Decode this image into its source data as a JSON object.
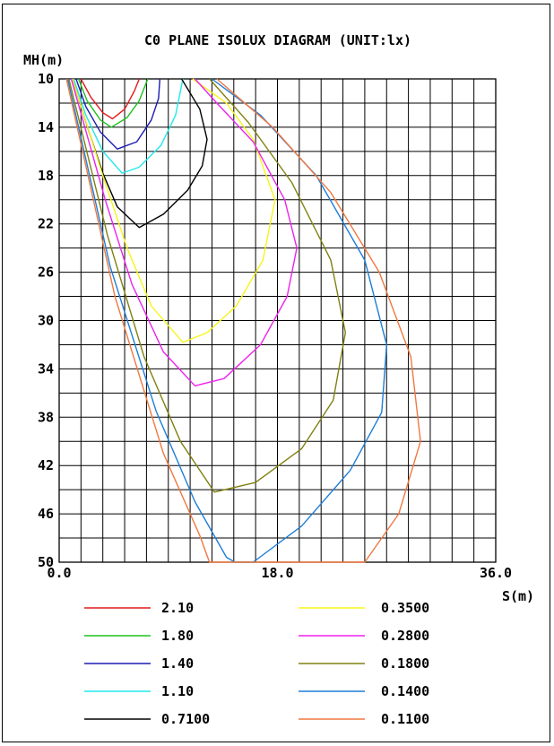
{
  "chart_data": {
    "type": "line",
    "title": "C0 PLANE ISOLUX DIAGRAM (UNIT:lx)",
    "xlabel": "S(m)",
    "ylabel": "MH(m)",
    "xlim": [
      0,
      36
    ],
    "ylim": [
      10,
      50
    ],
    "x_tick_labels": [
      "0.0",
      "18.0",
      "36.0"
    ],
    "y_tick_labels": [
      "10",
      "14",
      "18",
      "22",
      "26",
      "30",
      "34",
      "38",
      "42",
      "46",
      "50"
    ],
    "grid": true,
    "legend": [
      {
        "label": "2.10",
        "color": "#e41a1c"
      },
      {
        "label": "1.80",
        "color": "#1fc21f"
      },
      {
        "label": "1.40",
        "color": "#1c1cb4"
      },
      {
        "label": "1.10",
        "color": "#22e8ec"
      },
      {
        "label": "0.7100",
        "color": "#000000"
      },
      {
        "label": "0.3500",
        "color": "#f5f51c"
      },
      {
        "label": "0.2800",
        "color": "#ee22ee"
      },
      {
        "label": "0.1800",
        "color": "#808012"
      },
      {
        "label": "0.1400",
        "color": "#1e7ed8"
      },
      {
        "label": "0.1100",
        "color": "#f07840"
      }
    ],
    "series": [
      {
        "name": "2.10",
        "color": "#e41a1c",
        "points": [
          [
            1.8,
            10
          ],
          [
            2.6,
            11.5
          ],
          [
            3.6,
            12.8
          ],
          [
            4.4,
            13.3
          ],
          [
            5.4,
            12.5
          ],
          [
            6.2,
            11.0
          ],
          [
            6.6,
            10
          ]
        ]
      },
      {
        "name": "1.80",
        "color": "#1fc21f",
        "points": [
          [
            1.6,
            10
          ],
          [
            2.3,
            11.8
          ],
          [
            3.4,
            13.4
          ],
          [
            4.3,
            14.0
          ],
          [
            5.6,
            13.2
          ],
          [
            6.6,
            11.8
          ],
          [
            7.3,
            10
          ]
        ]
      },
      {
        "name": "1.40",
        "color": "#1c1cb4",
        "points": [
          [
            1.4,
            10
          ],
          [
            2.2,
            12.3
          ],
          [
            3.4,
            14.4
          ],
          [
            4.8,
            15.8
          ],
          [
            6.4,
            15.2
          ],
          [
            7.6,
            13.4
          ],
          [
            8.2,
            11.6
          ],
          [
            8.3,
            10
          ]
        ]
      },
      {
        "name": "1.10",
        "color": "#22e8ec",
        "points": [
          [
            1.2,
            10
          ],
          [
            2.2,
            13.0
          ],
          [
            3.6,
            16.0
          ],
          [
            5.2,
            17.8
          ],
          [
            6.6,
            17.3
          ],
          [
            8.4,
            15.5
          ],
          [
            9.6,
            13.0
          ],
          [
            10.2,
            10
          ]
        ]
      },
      {
        "name": "0.7100",
        "color": "#000000",
        "points": [
          [
            1.1,
            10
          ],
          [
            2.4,
            14.2
          ],
          [
            3.6,
            17.8
          ],
          [
            4.8,
            20.6
          ],
          [
            6.6,
            22.3
          ],
          [
            8.6,
            21.2
          ],
          [
            10.6,
            19.2
          ],
          [
            11.8,
            17.2
          ],
          [
            12.2,
            15.0
          ],
          [
            11.6,
            12.5
          ],
          [
            10.1,
            10
          ]
        ]
      },
      {
        "name": "0.3500",
        "color": "#f5f51c",
        "points": [
          [
            1.1,
            10
          ],
          [
            3.6,
            18.0
          ],
          [
            5.6,
            24.0
          ],
          [
            7.6,
            28.8
          ],
          [
            10.2,
            31.8
          ],
          [
            12.2,
            31.0
          ],
          [
            14.6,
            28.8
          ],
          [
            16.8,
            25.0
          ],
          [
            17.8,
            20.0
          ],
          [
            16.0,
            15.0
          ],
          [
            13.8,
            12.0
          ],
          [
            11.0,
            10
          ]
        ]
      },
      {
        "name": "0.2800",
        "color": "#ee22ee",
        "points": [
          [
            1.0,
            10
          ],
          [
            3.8,
            20.0
          ],
          [
            6.0,
            27.0
          ],
          [
            8.6,
            32.6
          ],
          [
            11.2,
            35.4
          ],
          [
            13.6,
            34.8
          ],
          [
            16.6,
            32.0
          ],
          [
            18.8,
            28.0
          ],
          [
            19.6,
            24.0
          ],
          [
            18.6,
            20.0
          ],
          [
            16.0,
            15.2
          ],
          [
            13.0,
            12.0
          ],
          [
            11.2,
            10
          ]
        ]
      },
      {
        "name": "0.1800",
        "color": "#808012",
        "points": [
          [
            0.8,
            10
          ],
          [
            4.0,
            23.0
          ],
          [
            7.0,
            33.0
          ],
          [
            10.0,
            40.0
          ],
          [
            12.8,
            44.2
          ],
          [
            16.2,
            43.4
          ],
          [
            20.0,
            40.6
          ],
          [
            22.6,
            36.6
          ],
          [
            23.6,
            31.0
          ],
          [
            22.4,
            25.0
          ],
          [
            19.2,
            18.6
          ],
          [
            15.6,
            13.6
          ],
          [
            12.4,
            10
          ]
        ]
      },
      {
        "name": "0.1400",
        "color": "#1e7ed8",
        "points": [
          [
            0.7,
            10
          ],
          [
            4.2,
            25.5
          ],
          [
            8.0,
            37.5
          ],
          [
            11.2,
            45.0
          ],
          [
            13.8,
            49.6
          ],
          [
            14.5,
            50.0
          ],
          [
            16.0,
            50.0
          ],
          [
            20.0,
            47.0
          ],
          [
            24.0,
            42.4
          ],
          [
            26.6,
            37.6
          ],
          [
            27.0,
            32.0
          ],
          [
            25.2,
            25.0
          ],
          [
            21.2,
            18.0
          ],
          [
            16.6,
            13.0
          ],
          [
            12.6,
            10
          ]
        ]
      },
      {
        "name": "0.1100",
        "color": "#f07840",
        "points": [
          [
            0.6,
            10
          ],
          [
            4.6,
            28.0
          ],
          [
            8.6,
            41.0
          ],
          [
            11.6,
            47.8
          ],
          [
            12.4,
            50.0
          ],
          [
            25.2,
            50.0
          ],
          [
            28.0,
            46.0
          ],
          [
            29.8,
            40.0
          ],
          [
            29.0,
            33.0
          ],
          [
            26.4,
            26.0
          ],
          [
            22.4,
            19.4
          ],
          [
            17.6,
            14.0
          ],
          [
            13.0,
            10
          ]
        ]
      }
    ]
  }
}
